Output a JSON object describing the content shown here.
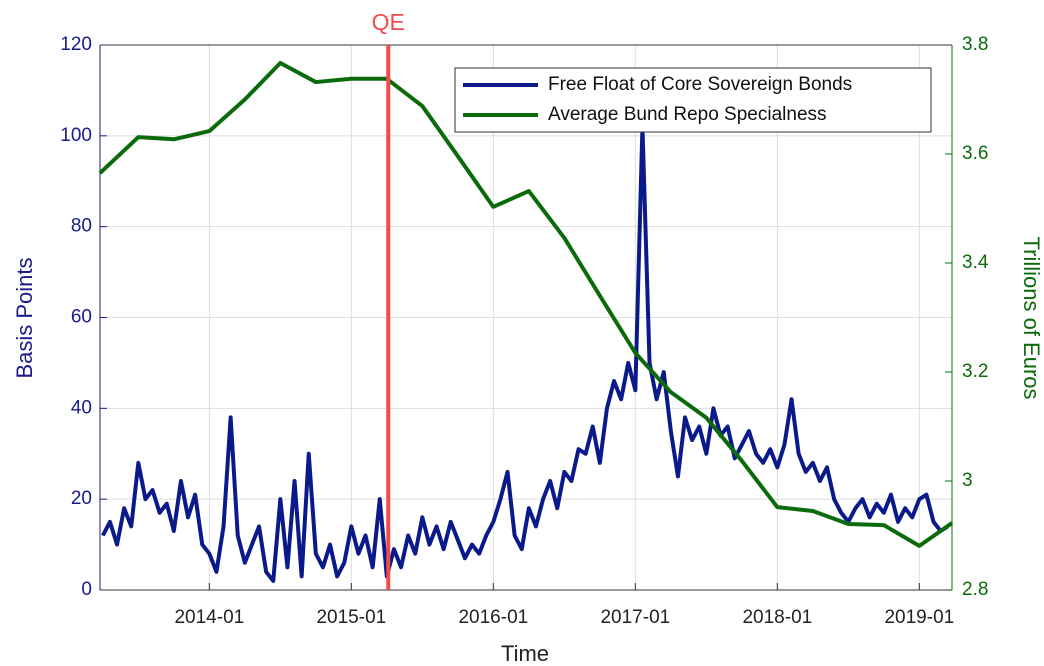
{
  "chart_data": {
    "type": "line",
    "xlabel": "Time",
    "ylabel": "Basis Points",
    "y2label": "Trillions of Euros",
    "xlim": [
      2013.23,
      2019.23
    ],
    "xticks": [
      {
        "value": 2014,
        "label": "2014-01"
      },
      {
        "value": 2015,
        "label": "2015-01"
      },
      {
        "value": 2016,
        "label": "2016-01"
      },
      {
        "value": 2017,
        "label": "2017-01"
      },
      {
        "value": 2018,
        "label": "2018-01"
      },
      {
        "value": 2019,
        "label": "2019-01"
      }
    ],
    "ylim": [
      0,
      120
    ],
    "yticks": [
      0,
      20,
      40,
      60,
      80,
      100,
      120
    ],
    "y2lim": [
      2.8,
      3.8
    ],
    "y2ticks": [
      2.8,
      3,
      3.2,
      3.4,
      3.6,
      3.8
    ],
    "grid": true,
    "legend": "upper right",
    "annotation": {
      "text": "QE",
      "x": 2015.26,
      "color": "#f24b4b"
    },
    "series": [
      {
        "name": "Free Float of Core Sovereign Bonds",
        "color": "#0b1a8a",
        "x": [
          2013.25,
          2013.3,
          2013.35,
          2013.4,
          2013.45,
          2013.5,
          2013.55,
          2013.6,
          2013.65,
          2013.7,
          2013.75,
          2013.8,
          2013.85,
          2013.9,
          2013.95,
          2014,
          2014.05,
          2014.1,
          2014.15,
          2014.2,
          2014.25,
          2014.3,
          2014.35,
          2014.4,
          2014.45,
          2014.5,
          2014.55,
          2014.6,
          2014.65,
          2014.7,
          2014.75,
          2014.8,
          2014.85,
          2014.9,
          2014.95,
          2015,
          2015.05,
          2015.1,
          2015.15,
          2015.2,
          2015.25,
          2015.3,
          2015.35,
          2015.4,
          2015.45,
          2015.5,
          2015.55,
          2015.6,
          2015.65,
          2015.7,
          2015.75,
          2015.8,
          2015.85,
          2015.9,
          2015.95,
          2016,
          2016.05,
          2016.1,
          2016.15,
          2016.2,
          2016.25,
          2016.3,
          2016.35,
          2016.4,
          2016.45,
          2016.5,
          2016.55,
          2016.6,
          2016.65,
          2016.7,
          2016.75,
          2016.8,
          2016.85,
          2016.9,
          2016.95,
          2017,
          2017.05,
          2017.1,
          2017.15,
          2017.2,
          2017.25,
          2017.3,
          2017.35,
          2017.4,
          2017.45,
          2017.5,
          2017.55,
          2017.6,
          2017.65,
          2017.7,
          2017.75,
          2017.8,
          2017.85,
          2017.9,
          2017.95,
          2018,
          2018.05,
          2018.1,
          2018.15,
          2018.2,
          2018.25,
          2018.3,
          2018.35,
          2018.4,
          2018.45,
          2018.5,
          2018.55,
          2018.6,
          2018.65,
          2018.7,
          2018.75,
          2018.8,
          2018.85,
          2018.9,
          2018.95,
          2019,
          2019.05,
          2019.1,
          2019.15,
          2019.2
        ],
        "values": [
          12,
          15,
          10,
          18,
          14,
          28,
          20,
          22,
          17,
          19,
          13,
          24,
          16,
          21,
          10,
          8,
          4,
          14,
          38,
          12,
          6,
          10,
          14,
          4,
          2,
          20,
          5,
          24,
          3,
          30,
          8,
          5,
          10,
          3,
          6,
          14,
          8,
          12,
          5,
          20,
          3,
          9,
          5,
          12,
          8,
          16,
          10,
          14,
          9,
          15,
          11,
          7,
          10,
          8,
          12,
          15,
          20,
          26,
          12,
          9,
          18,
          14,
          20,
          24,
          18,
          26,
          24,
          31,
          30,
          36,
          28,
          40,
          46,
          42,
          50,
          44,
          102,
          50,
          42,
          48,
          35,
          25,
          38,
          33,
          36,
          30,
          40,
          34,
          36,
          29,
          32,
          35,
          30,
          28,
          31,
          27,
          32,
          42,
          30,
          26,
          28,
          24,
          27,
          20,
          17,
          15,
          18,
          20,
          16,
          19,
          17,
          21,
          15,
          18,
          16,
          20,
          21,
          15,
          13,
          14
        ]
      },
      {
        "name": "Average Bund Repo Specialness",
        "color": "#0b6b0b",
        "axis": "y2",
        "x": [
          2013.23,
          2013.5,
          2013.75,
          2014,
          2014.25,
          2014.5,
          2014.75,
          2015,
          2015.25,
          2015.5,
          2015.75,
          2016,
          2016.25,
          2016.5,
          2016.75,
          2017,
          2017.25,
          2017.5,
          2017.75,
          2018,
          2018.25,
          2018.5,
          2018.75,
          2019,
          2019.23
        ],
        "values": [
          3.565,
          3.631,
          3.627,
          3.642,
          3.7,
          3.767,
          3.732,
          3.738,
          3.738,
          3.688,
          3.596,
          3.503,
          3.532,
          3.446,
          3.34,
          3.235,
          3.163,
          3.116,
          3.037,
          2.952,
          2.945,
          2.921,
          2.919,
          2.881,
          2.923
        ]
      }
    ]
  }
}
